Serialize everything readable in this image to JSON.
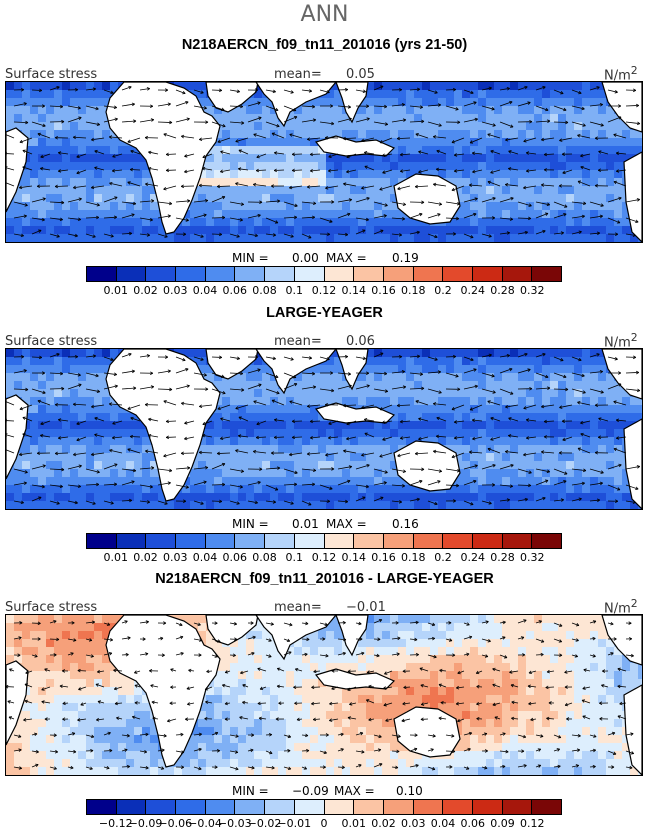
{
  "title": "ANN",
  "panels": [
    {
      "id": "p1",
      "title": "N218AERCN_f09_tn11_201016 (yrs 21-50)",
      "left_label": "Surface stress",
      "mean_label": "mean=",
      "mean_value": "0.05",
      "units_html": "N/m<sup>2</sup>",
      "min_label": "MIN =",
      "min_value": "0.00",
      "max_label": "MAX =",
      "max_value": "0.19",
      "colorbar": "abs",
      "map_style": "abs1"
    },
    {
      "id": "p2",
      "title": "LARGE-YEAGER",
      "left_label": "Surface stress",
      "mean_label": "mean=",
      "mean_value": "0.06",
      "units_html": "N/m<sup>2</sup>",
      "min_label": "MIN =",
      "min_value": "0.01",
      "max_label": "MAX =",
      "max_value": "0.16",
      "colorbar": "abs",
      "map_style": "abs2"
    },
    {
      "id": "p3",
      "title": "N218AERCN_f09_tn11_201016 - LARGE-YEAGER",
      "left_label": "Surface stress",
      "mean_label": "mean=",
      "mean_value": "−0.01",
      "units_html": "N/m<sup>2</sup>",
      "min_label": "MIN =",
      "min_value": "−0.09",
      "max_label": "MAX =",
      "max_value": "0.10",
      "colorbar": "diff",
      "map_style": "diff"
    }
  ],
  "colorbars": {
    "abs": {
      "colors": [
        "#00008b",
        "#0a2fb8",
        "#1e4fd8",
        "#2f6ce8",
        "#4f8cf0",
        "#7fb0f5",
        "#b5d4fa",
        "#ddeefd",
        "#fde6d4",
        "#fbc4a4",
        "#f6a07a",
        "#ef7550",
        "#e34a2c",
        "#cc2a14",
        "#a6170c",
        "#7a0606"
      ],
      "ticks": [
        "0.01",
        "0.02",
        "0.03",
        "0.04",
        "0.06",
        "0.08",
        "0.1",
        "0.12",
        "0.14",
        "0.16",
        "0.18",
        "0.2",
        "0.24",
        "0.28",
        "0.32"
      ]
    },
    "diff": {
      "colors": [
        "#00008b",
        "#0a2fb8",
        "#1e4fd8",
        "#2f6ce8",
        "#4f8cf0",
        "#7fb0f5",
        "#b5d4fa",
        "#ddeefd",
        "#fde6d4",
        "#fbc4a4",
        "#f6a07a",
        "#ef7550",
        "#e34a2c",
        "#cc2a14",
        "#a6170c",
        "#7a0606"
      ],
      "ticks": [
        "−0.12",
        "−0.09",
        "−0.06",
        "−0.04",
        "−0.03",
        "−0.02",
        "−0.01",
        "0",
        "0.01",
        "0.02",
        "0.03",
        "0.04",
        "0.06",
        "0.09",
        "0.12"
      ]
    }
  }
}
